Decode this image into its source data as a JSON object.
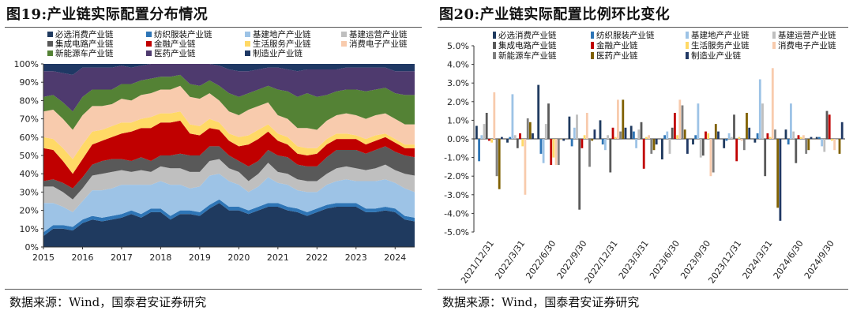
{
  "chart_data": [
    {
      "type": "area",
      "title": "图19:产业链实际配置分布情况",
      "source": "数据来源：Wind，国泰君安证券研究",
      "stacked": true,
      "x": [
        2015.0,
        2015.25,
        2015.5,
        2015.75,
        2016.0,
        2016.25,
        2016.5,
        2016.75,
        2017.0,
        2017.25,
        2017.5,
        2017.75,
        2018.0,
        2018.25,
        2018.5,
        2018.75,
        2019.0,
        2019.25,
        2019.5,
        2019.75,
        2020.0,
        2020.25,
        2020.5,
        2020.75,
        2021.0,
        2021.25,
        2021.5,
        2021.75,
        2022.0,
        2022.25,
        2022.5,
        2022.75,
        2023.0,
        2023.25,
        2023.5,
        2023.75,
        2024.0,
        2024.25,
        2024.5
      ],
      "x_ticks": [
        "2015",
        "2016",
        "2017",
        "2018",
        "2019",
        "2020",
        "2021",
        "2022",
        "2023",
        "2024"
      ],
      "y_ticks": [
        "0%",
        "10%",
        "20%",
        "30%",
        "40%",
        "50%",
        "60%",
        "70%",
        "80%",
        "90%",
        "100%"
      ],
      "ylim": [
        0,
        100
      ],
      "series": [
        {
          "name": "必选消费产业链",
          "color": "#1f3a5f",
          "values": [
            6,
            10,
            10,
            9,
            13,
            15,
            14,
            15,
            16,
            18,
            16,
            19,
            19,
            15,
            18,
            18,
            17,
            21,
            24,
            20,
            20,
            18,
            20,
            22,
            22,
            20,
            19,
            17,
            19,
            21,
            22,
            22,
            22,
            19,
            19,
            20,
            19,
            15,
            14
          ]
        },
        {
          "name": "纺织服装产业链",
          "color": "#2e75b6",
          "values": [
            2,
            2,
            2,
            2,
            2,
            2,
            2,
            2,
            2,
            2,
            2,
            2,
            2,
            2,
            2,
            2,
            2,
            2,
            2,
            2,
            2,
            2,
            2,
            2,
            2,
            2,
            2,
            2,
            2,
            2,
            2,
            2,
            2,
            2,
            2,
            2,
            2,
            2,
            2
          ]
        },
        {
          "name": "基建地产产业链",
          "color": "#9dc3e6",
          "values": [
            16,
            12,
            10,
            8,
            10,
            14,
            15,
            15,
            16,
            14,
            16,
            13,
            15,
            17,
            14,
            12,
            14,
            16,
            14,
            14,
            12,
            10,
            11,
            14,
            11,
            12,
            10,
            11,
            9,
            11,
            12,
            13,
            12,
            15,
            15,
            15,
            14,
            15,
            14
          ]
        },
        {
          "name": "基建运营产业链",
          "color": "#bfbfbf",
          "values": [
            9,
            9,
            8,
            7,
            7,
            8,
            9,
            9,
            8,
            7,
            8,
            7,
            8,
            9,
            9,
            9,
            8,
            8,
            8,
            7,
            7,
            6,
            7,
            8,
            6,
            6,
            6,
            6,
            6,
            6,
            7,
            7,
            7,
            6,
            7,
            8,
            7,
            8,
            9
          ]
        },
        {
          "name": "集成电路产业链",
          "color": "#595959",
          "values": [
            3,
            4,
            5,
            6,
            6,
            6,
            7,
            7,
            6,
            6,
            7,
            6,
            6,
            7,
            8,
            9,
            9,
            8,
            7,
            7,
            6,
            8,
            7,
            7,
            9,
            9,
            8,
            8,
            8,
            9,
            10,
            9,
            10,
            9,
            10,
            10,
            10,
            10,
            10
          ]
        },
        {
          "name": "金融产业链",
          "color": "#c00000",
          "values": [
            18,
            16,
            12,
            8,
            10,
            11,
            11,
            12,
            14,
            16,
            16,
            18,
            18,
            18,
            18,
            12,
            11,
            10,
            9,
            8,
            8,
            12,
            12,
            10,
            8,
            7,
            6,
            6,
            7,
            7,
            6,
            6,
            6,
            5,
            5,
            5,
            5,
            4,
            5
          ]
        },
        {
          "name": "生活服务产业链",
          "color": "#ffd966",
          "values": [
            6,
            6,
            7,
            8,
            8,
            7,
            6,
            6,
            6,
            5,
            5,
            6,
            5,
            5,
            5,
            5,
            5,
            5,
            4,
            4,
            5,
            5,
            5,
            4,
            4,
            4,
            4,
            4,
            3,
            3,
            3,
            3,
            2,
            3,
            3,
            2,
            2,
            2,
            2
          ]
        },
        {
          "name": "消费电子产业链",
          "color": "#f8cbad",
          "values": [
            14,
            16,
            16,
            16,
            16,
            14,
            13,
            12,
            13,
            12,
            13,
            13,
            13,
            13,
            14,
            15,
            15,
            14,
            12,
            12,
            12,
            14,
            13,
            12,
            10,
            10,
            10,
            11,
            10,
            10,
            10,
            11,
            11,
            11,
            11,
            11,
            11,
            11,
            11
          ]
        },
        {
          "name": "新能源车产业链",
          "color": "#548235",
          "values": [
            8,
            8,
            9,
            10,
            10,
            9,
            9,
            8,
            8,
            9,
            8,
            8,
            7,
            7,
            6,
            7,
            7,
            7,
            8,
            10,
            10,
            9,
            9,
            9,
            14,
            15,
            17,
            19,
            18,
            14,
            13,
            13,
            14,
            15,
            14,
            14,
            14,
            16,
            16
          ]
        },
        {
          "name": "医药产业链",
          "color": "#4e3a6e",
          "values": [
            14,
            13,
            16,
            20,
            16,
            12,
            12,
            12,
            10,
            9,
            8,
            8,
            7,
            7,
            6,
            11,
            12,
            9,
            11,
            13,
            14,
            12,
            11,
            10,
            12,
            12,
            14,
            13,
            15,
            14,
            12,
            12,
            12,
            13,
            12,
            11,
            12,
            13,
            13
          ]
        },
        {
          "name": "制造业产业链",
          "color": "#1f3864",
          "values": [
            4,
            4,
            5,
            6,
            2,
            2,
            2,
            2,
            1,
            2,
            1,
            0,
            0,
            0,
            0,
            0,
            0,
            0,
            1,
            3,
            4,
            4,
            3,
            2,
            2,
            3,
            4,
            3,
            3,
            3,
            3,
            2,
            2,
            2,
            2,
            2,
            4,
            4,
            4
          ]
        }
      ],
      "legend": "top"
    },
    {
      "type": "bar",
      "title": "图20:产业链实际配置比例环比变化",
      "source": "数据来源：Wind，国泰君安证券研究",
      "categories": [
        "2021/12/31",
        "2022/3/31",
        "2022/6/30",
        "2022/9/30",
        "2022/12/31",
        "2023/3/31",
        "2023/6/30",
        "2023/9/30",
        "2023/12/31",
        "2024/3/31",
        "2024/6/30",
        "2024/9/30"
      ],
      "x_ticks": [
        "2021/12/31",
        "2022/3/31",
        "2022/6/30",
        "2022/9/30",
        "2022/12/31",
        "2023/3/31",
        "2023/6/30",
        "2023/9/30",
        "2023/12/31",
        "2024/3/31",
        "2024/6/30",
        "2024/9/30"
      ],
      "y_ticks": [
        "5.0%",
        "4.0%",
        "3.0%",
        "2.0%",
        "1.0%",
        "0.0%",
        "-1.0%",
        "-2.0%",
        "-3.0%",
        "-4.0%",
        "-5.0%"
      ],
      "ylim": [
        -5,
        5
      ],
      "series": [
        {
          "name": "必选消费产业链",
          "color": "#1f3a5f",
          "values": [
            0.7,
            -0.2,
            2.9,
            1.2,
            1.0,
            0.7,
            -1.1,
            -0.3,
            -0.5,
            -0.2,
            0.5,
            0.1
          ]
        },
        {
          "name": "纺织服装产业链",
          "color": "#2e75b6",
          "values": [
            -1.2,
            0.1,
            -0.8,
            -0.4,
            -0.3,
            0.4,
            0.2,
            0.2,
            -0.1,
            0.3,
            -0.3,
            0.1
          ]
        },
        {
          "name": "基建地产产业链",
          "color": "#9dc3e6",
          "values": [
            0.2,
            2.4,
            -1.3,
            0.6,
            -0.6,
            -0.5,
            0.4,
            1.9,
            0.3,
            3.2,
            1.9,
            -0.4
          ]
        },
        {
          "name": "基建运营产业链",
          "color": "#bfbfbf",
          "values": [
            0.8,
            0.2,
            0.8,
            1.3,
            0.2,
            0.5,
            -0.8,
            -1.0,
            0.1,
            1.9,
            0.4,
            -0.7
          ]
        },
        {
          "name": "集成电路产业链",
          "color": "#595959",
          "values": [
            1.4,
            -0.5,
            1.9,
            -3.8,
            -1.8,
            0.9,
            0.6,
            -0.9,
            1.3,
            -2.0,
            -1.3,
            1.5
          ]
        },
        {
          "name": "金融产业链",
          "color": "#c00000",
          "values": [
            -0.1,
            0.3,
            -1.4,
            -0.5,
            0.6,
            -1.6,
            1.4,
            0.4,
            -1.2,
            0.3,
            0.2,
            1.3
          ]
        },
        {
          "name": "生活服务产业链",
          "color": "#ffd966",
          "values": [
            -0.2,
            -0.4,
            -1.0,
            0.2,
            0.1,
            0.1,
            0.2,
            0.3,
            0.1,
            0.1,
            0.1,
            -0.1
          ]
        },
        {
          "name": "消费电子产业链",
          "color": "#f8cbad",
          "values": [
            2.5,
            -3.0,
            -1.4,
            1.4,
            2.1,
            0.2,
            2.1,
            -2.0,
            -0.1,
            3.8,
            0.2,
            -0.6
          ]
        },
        {
          "name": "新能源车产业链",
          "color": "#7f7f7f",
          "values": [
            -2.0,
            1.1,
            -1.4,
            -1.5,
            0.4,
            -0.8,
            1.8,
            -1.8,
            -0.6,
            0.5,
            -0.8,
            0.0
          ]
        },
        {
          "name": "医药产业链",
          "color": "#7f6000",
          "values": [
            -2.7,
            0.9,
            0.0,
            -0.1,
            2.1,
            -0.6,
            0.5,
            0.8,
            1.4,
            -3.7,
            -0.6,
            -0.8
          ]
        },
        {
          "name": "制造业产业链",
          "color": "#203864",
          "values": [
            0.1,
            0.3,
            -0.1,
            0.5,
            0.6,
            -0.3,
            -0.8,
            0.4,
            0.6,
            -4.4,
            0.1,
            0.9
          ]
        }
      ],
      "legend": "top"
    }
  ]
}
